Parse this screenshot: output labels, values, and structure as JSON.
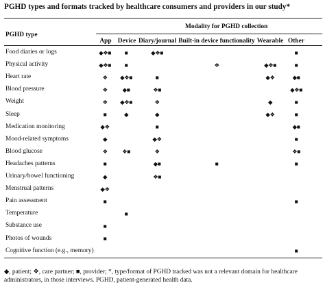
{
  "title": "PGHD types and formats tracked by healthcare consumers and providers in our study*",
  "header": {
    "pghd_type": "PGHD type",
    "modality": "Modality for PGHD collection",
    "columns": [
      "App",
      "Device",
      "Diary/journal",
      "Built-in device functionality",
      "Wearable",
      "Other"
    ]
  },
  "rows": [
    {
      "label": "Food diaries or logs",
      "cells": [
        "◆❖■",
        "■",
        "◆❖■",
        "",
        "",
        "■"
      ]
    },
    {
      "label": "Physical activity",
      "cells": [
        "◆❖■",
        "■",
        "",
        "❖",
        "◆❖■",
        "■"
      ]
    },
    {
      "label": "Heart rate",
      "cells": [
        "❖",
        "◆❖■",
        "■",
        "",
        "◆❖",
        "◆■"
      ]
    },
    {
      "label": "Blood pressure",
      "cells": [
        "❖",
        "◆■",
        "❖■",
        "",
        "",
        "◆❖■"
      ]
    },
    {
      "label": "Weight",
      "cells": [
        "❖",
        "◆❖■",
        "❖",
        "",
        "◆",
        "■"
      ]
    },
    {
      "label": "Sleep",
      "cells": [
        "■",
        "◆",
        "◆",
        "",
        "◆❖",
        "■"
      ]
    },
    {
      "label": "Medication monitoring",
      "cells": [
        "◆❖",
        "",
        "■",
        "",
        "",
        "◆■"
      ]
    },
    {
      "label": "Mood-related symptoms",
      "cells": [
        "◆",
        "",
        "◆❖",
        "",
        "",
        "■"
      ]
    },
    {
      "label": "Blood glucose",
      "cells": [
        "❖",
        "❖■",
        "❖",
        "",
        "",
        "❖■"
      ]
    },
    {
      "label": "Headaches patterns",
      "cells": [
        "■",
        "",
        "◆■",
        "■",
        "",
        "■"
      ]
    },
    {
      "label": "Urinary/bowel functioning",
      "cells": [
        "◆",
        "",
        "❖■",
        "",
        "",
        ""
      ]
    },
    {
      "label": "Menstrual patterns",
      "cells": [
        "◆❖",
        "",
        "",
        "",
        "",
        ""
      ]
    },
    {
      "label": "Pain assessment",
      "cells": [
        "■",
        "",
        "",
        "",
        "",
        "■"
      ]
    },
    {
      "label": "Temperature",
      "cells": [
        "",
        "■",
        "",
        "",
        "",
        ""
      ]
    },
    {
      "label": "Substance use",
      "cells": [
        "■",
        "",
        "",
        "",
        "",
        ""
      ]
    },
    {
      "label": "Photos of wounds",
      "cells": [
        "■",
        "",
        "",
        "",
        "",
        ""
      ]
    },
    {
      "label": "Cognitive function (e.g., memory)",
      "cells": [
        "",
        "",
        "",
        "",
        "",
        "■"
      ]
    }
  ],
  "footnote": "◆, patient; ❖, care partner; ■, provider; *, type/format of PGHD tracked was not a relevant domain for healthcare administrators, in those interviews. PGHD, patient-generated health data."
}
